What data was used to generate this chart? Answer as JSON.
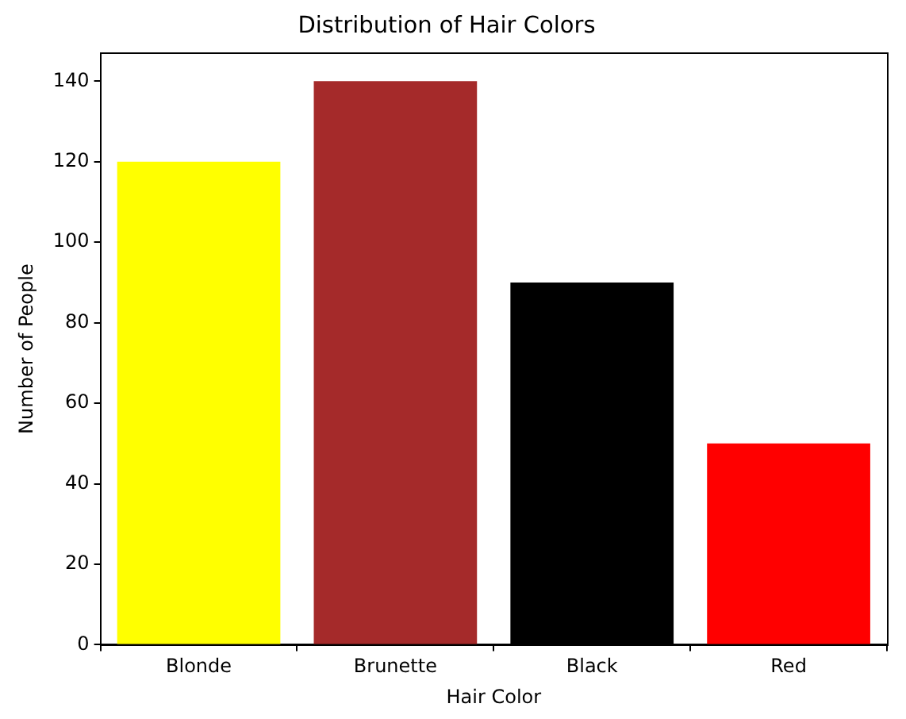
{
  "chart_data": {
    "type": "bar",
    "title": "Distribution of Hair Colors",
    "xlabel": "Hair Color",
    "ylabel": "Number of People",
    "categories": [
      "Blonde",
      "Brunette",
      "Black",
      "Red"
    ],
    "values": [
      120,
      140,
      90,
      50
    ],
    "colors": [
      "#ffff00",
      "#a52a2a",
      "#000000",
      "#ff0000"
    ],
    "ylim": [
      0,
      147
    ],
    "yticks": [
      0,
      20,
      40,
      60,
      80,
      100,
      120,
      140
    ],
    "grid": false,
    "legend": false
  }
}
